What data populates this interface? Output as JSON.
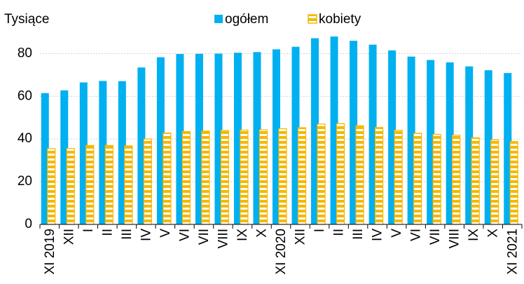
{
  "chart_data": {
    "type": "bar",
    "y_axis_label": "Tysiące",
    "categories": [
      "XI 2019",
      "XII",
      "I",
      "II",
      "III",
      "IV",
      "V",
      "VI",
      "VII",
      "VIII",
      "IX",
      "X",
      "XI 2020",
      "XII",
      "I",
      "II",
      "III",
      "IV",
      "V",
      "VI",
      "VII",
      "VIII",
      "IX",
      "X",
      "XI 2021"
    ],
    "series": [
      {
        "name": "ogółem",
        "color": "#00b0f0",
        "values": [
          61.5,
          62.8,
          66.5,
          67.2,
          67.1,
          73.5,
          78.3,
          79.8,
          79.9,
          80.0,
          80.4,
          80.7,
          82.0,
          83.2,
          87.2,
          88.0,
          86.0,
          84.2,
          81.5,
          78.6,
          77.0,
          75.9,
          74.0,
          72.2,
          70.9
        ]
      },
      {
        "name": "kobiety",
        "color": "#f5b800",
        "values": [
          35.5,
          35.6,
          37.0,
          37.0,
          36.8,
          40.0,
          42.8,
          43.5,
          43.7,
          44.0,
          44.2,
          44.3,
          44.8,
          45.3,
          47.0,
          47.2,
          46.2,
          45.4,
          44.1,
          42.7,
          42.2,
          41.8,
          40.6,
          39.6,
          38.8
        ]
      }
    ],
    "ylim": [
      0,
      90
    ],
    "yticks": [
      0,
      20,
      40,
      60,
      80
    ],
    "grid": true
  }
}
